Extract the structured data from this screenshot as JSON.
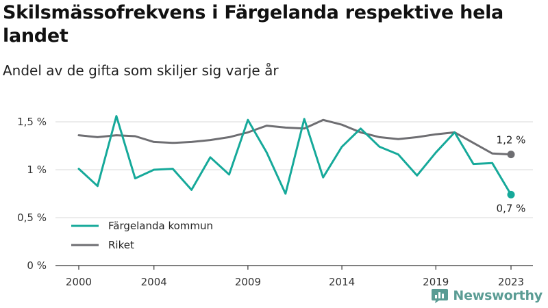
{
  "title": "Skilsmässofrekvens i Färgelanda respektive hela landet",
  "subtitle": "Andel av de gifta som skiljer sig varje år",
  "brand": {
    "name": "Newsworthy",
    "icon": "newsworthy-logo-icon"
  },
  "colors": {
    "teal": "#16a99a",
    "gray": "#6e6e72",
    "grid": "#d9d9d9",
    "axis": "#333333"
  },
  "chart_data": {
    "type": "line",
    "x": [
      2000,
      2001,
      2002,
      2003,
      2004,
      2005,
      2006,
      2007,
      2008,
      2009,
      2010,
      2011,
      2012,
      2013,
      2014,
      2015,
      2016,
      2017,
      2018,
      2019,
      2020,
      2021,
      2022,
      2023
    ],
    "x_ticks": [
      2000,
      2004,
      2009,
      2014,
      2019,
      2023
    ],
    "x_tick_labels": [
      "2000",
      "2004",
      "2009",
      "2014",
      "2019",
      "2023"
    ],
    "ylim": [
      0,
      1.5
    ],
    "y_ticks": [
      0,
      0.5,
      1,
      1.5
    ],
    "y_tick_labels": [
      "0 %",
      "0,5 %",
      "1 %",
      "1,5 %"
    ],
    "grid": "horizontal",
    "legend_position": "bottom-left",
    "series": [
      {
        "name": "Färgelanda kommun",
        "color": "#16a99a",
        "values": [
          1.01,
          0.83,
          1.56,
          0.91,
          1.0,
          1.01,
          0.79,
          1.13,
          0.95,
          1.52,
          1.18,
          0.75,
          1.53,
          0.92,
          1.24,
          1.43,
          1.24,
          1.16,
          0.94,
          1.18,
          1.39,
          1.06,
          1.07,
          0.74
        ],
        "end_label": "0,7 %"
      },
      {
        "name": "Riket",
        "color": "#6e6e72",
        "values": [
          1.36,
          1.34,
          1.36,
          1.35,
          1.29,
          1.28,
          1.29,
          1.31,
          1.34,
          1.39,
          1.46,
          1.44,
          1.43,
          1.52,
          1.47,
          1.39,
          1.34,
          1.32,
          1.34,
          1.37,
          1.39,
          1.28,
          1.17,
          1.16
        ],
        "end_label": "1,2 %"
      }
    ]
  }
}
